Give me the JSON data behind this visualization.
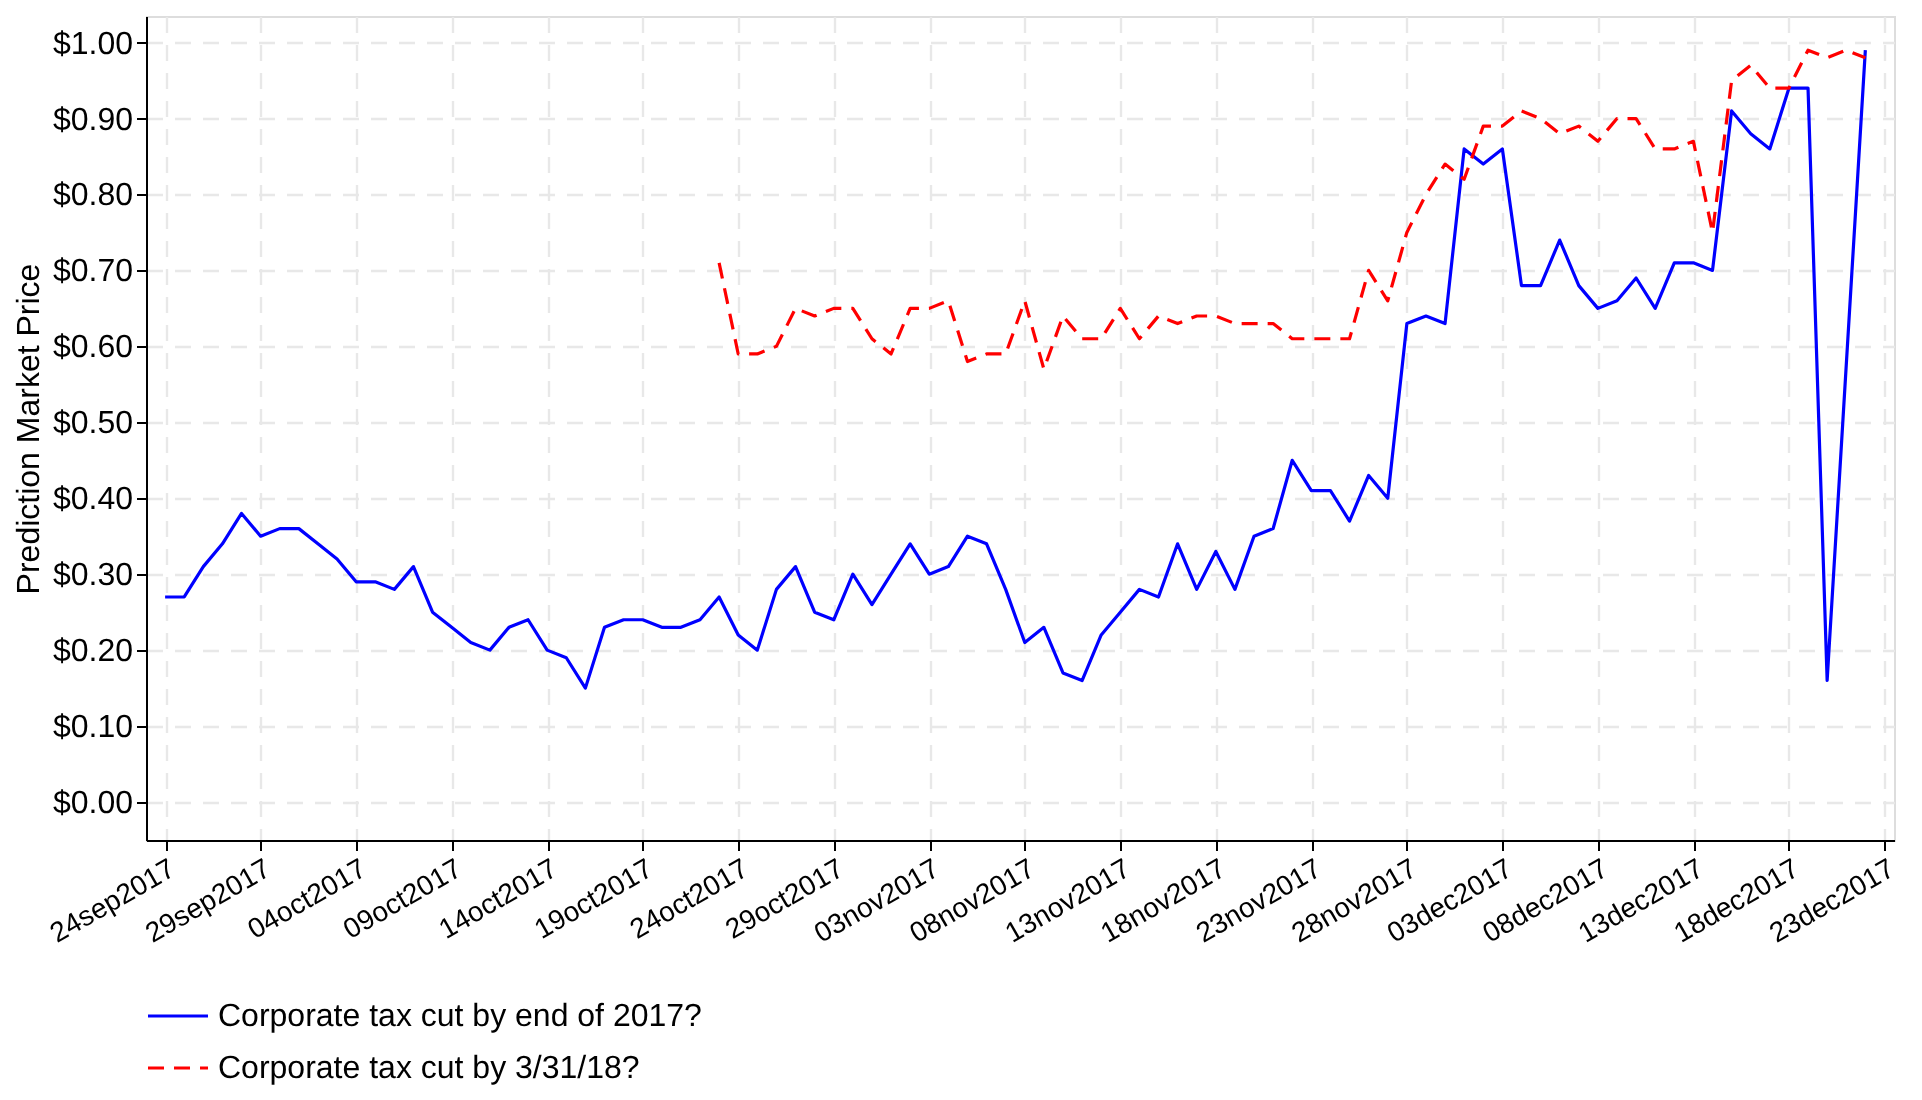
{
  "chart_data": {
    "type": "line",
    "ylabel": "Prediction Market Price",
    "xlim": [
      "2017-09-23",
      "2017-12-23T12:00"
    ],
    "xticks": [
      {
        "value": "2017-09-24",
        "label": "24sep2017"
      },
      {
        "value": "2017-09-29",
        "label": "29sep2017"
      },
      {
        "value": "2017-10-04",
        "label": "04oct2017"
      },
      {
        "value": "2017-10-09",
        "label": "09oct2017"
      },
      {
        "value": "2017-10-14",
        "label": "14oct2017"
      },
      {
        "value": "2017-10-19",
        "label": "19oct2017"
      },
      {
        "value": "2017-10-24",
        "label": "24oct2017"
      },
      {
        "value": "2017-10-29",
        "label": "29oct2017"
      },
      {
        "value": "2017-11-03",
        "label": "03nov2017"
      },
      {
        "value": "2017-11-08",
        "label": "08nov2017"
      },
      {
        "value": "2017-11-13",
        "label": "13nov2017"
      },
      {
        "value": "2017-11-18",
        "label": "18nov2017"
      },
      {
        "value": "2017-11-23",
        "label": "23nov2017"
      },
      {
        "value": "2017-11-28",
        "label": "28nov2017"
      },
      {
        "value": "2017-12-03",
        "label": "03dec2017"
      },
      {
        "value": "2017-12-08",
        "label": "08dec2017"
      },
      {
        "value": "2017-12-13",
        "label": "13dec2017"
      },
      {
        "value": "2017-12-18",
        "label": "18dec2017"
      },
      {
        "value": "2017-12-23",
        "label": "23dec2017"
      }
    ],
    "ylim": [
      -0.05,
      1.035
    ],
    "yticks": [
      {
        "value": 0,
        "label": "$0.00"
      },
      {
        "value": 0.1,
        "label": "$0.10"
      },
      {
        "value": 0.2,
        "label": "$0.20"
      },
      {
        "value": 0.3,
        "label": "$0.30"
      },
      {
        "value": 0.4,
        "label": "$0.40"
      },
      {
        "value": 0.5,
        "label": "$0.50"
      },
      {
        "value": 0.6,
        "label": "$0.60"
      },
      {
        "value": 0.7,
        "label": "$0.70"
      },
      {
        "value": 0.8,
        "label": "$0.80"
      },
      {
        "value": 0.9,
        "label": "$0.90"
      },
      {
        "value": 1.0,
        "label": "$1.00"
      }
    ],
    "grid": true,
    "legend": "bottom",
    "series": [
      {
        "name": "Corporate tax cut by end of 2017?",
        "color": "#0000ff",
        "line_style": "solid",
        "x": [
          "2017-09-24",
          "2017-09-25",
          "2017-09-26",
          "2017-09-27",
          "2017-09-28",
          "2017-09-29",
          "2017-09-30",
          "2017-10-01",
          "2017-10-02",
          "2017-10-03",
          "2017-10-04",
          "2017-10-05",
          "2017-10-06",
          "2017-10-07",
          "2017-10-08",
          "2017-10-09",
          "2017-10-10",
          "2017-10-11",
          "2017-10-12",
          "2017-10-13",
          "2017-10-14",
          "2017-10-15",
          "2017-10-16",
          "2017-10-17",
          "2017-10-18",
          "2017-10-19",
          "2017-10-20",
          "2017-10-21",
          "2017-10-22",
          "2017-10-23",
          "2017-10-24",
          "2017-10-25",
          "2017-10-26",
          "2017-10-27",
          "2017-10-28",
          "2017-10-29",
          "2017-10-30",
          "2017-10-31",
          "2017-11-01",
          "2017-11-02",
          "2017-11-03",
          "2017-11-04",
          "2017-11-05",
          "2017-11-06",
          "2017-11-07",
          "2017-11-08",
          "2017-11-09",
          "2017-11-10",
          "2017-11-11",
          "2017-11-12",
          "2017-11-13",
          "2017-11-14",
          "2017-11-15",
          "2017-11-16",
          "2017-11-17",
          "2017-11-18",
          "2017-11-19",
          "2017-11-20",
          "2017-11-21",
          "2017-11-22",
          "2017-11-23",
          "2017-11-24",
          "2017-11-25",
          "2017-11-26",
          "2017-11-27",
          "2017-11-28",
          "2017-11-29",
          "2017-11-30",
          "2017-12-01",
          "2017-12-02",
          "2017-12-03",
          "2017-12-04",
          "2017-12-05",
          "2017-12-06",
          "2017-12-07",
          "2017-12-08",
          "2017-12-09",
          "2017-12-10",
          "2017-12-11",
          "2017-12-12",
          "2017-12-13",
          "2017-12-14",
          "2017-12-15",
          "2017-12-16",
          "2017-12-17",
          "2017-12-18",
          "2017-12-19",
          "2017-12-20",
          "2017-12-22"
        ],
        "values": [
          0.27,
          0.27,
          0.31,
          0.34,
          0.38,
          0.35,
          0.36,
          0.36,
          0.34,
          0.32,
          0.29,
          0.29,
          0.28,
          0.31,
          0.25,
          0.23,
          0.21,
          0.2,
          0.23,
          0.24,
          0.2,
          0.19,
          0.15,
          0.23,
          0.24,
          0.24,
          0.23,
          0.23,
          0.24,
          0.27,
          0.22,
          0.2,
          0.28,
          0.31,
          0.25,
          0.24,
          0.3,
          0.26,
          0.3,
          0.34,
          0.3,
          0.31,
          0.35,
          0.34,
          0.28,
          0.21,
          0.23,
          0.17,
          0.16,
          0.22,
          0.25,
          0.28,
          0.27,
          0.34,
          0.28,
          0.33,
          0.28,
          0.35,
          0.36,
          0.45,
          0.41,
          0.41,
          0.37,
          0.43,
          0.4,
          0.63,
          0.64,
          0.63,
          0.86,
          0.84,
          0.86,
          0.68,
          0.68,
          0.74,
          0.68,
          0.65,
          0.66,
          0.69,
          0.65,
          0.71,
          0.71,
          0.7,
          0.91,
          0.88,
          0.86,
          0.94,
          0.94,
          0.16,
          0.99
        ]
      },
      {
        "name": "Corporate tax cut by 3/31/18?",
        "color": "#ff0000",
        "line_style": "dashed",
        "x": [
          "2017-10-23",
          "2017-10-24",
          "2017-10-25",
          "2017-10-26",
          "2017-10-27",
          "2017-10-28",
          "2017-10-29",
          "2017-10-30",
          "2017-10-31",
          "2017-11-01",
          "2017-11-02",
          "2017-11-03",
          "2017-11-04",
          "2017-11-05",
          "2017-11-06",
          "2017-11-07",
          "2017-11-08",
          "2017-11-09",
          "2017-11-10",
          "2017-11-11",
          "2017-11-12",
          "2017-11-13",
          "2017-11-14",
          "2017-11-15",
          "2017-11-16",
          "2017-11-17",
          "2017-11-18",
          "2017-11-19",
          "2017-11-20",
          "2017-11-21",
          "2017-11-22",
          "2017-11-23",
          "2017-11-24",
          "2017-11-25",
          "2017-11-26",
          "2017-11-27",
          "2017-11-28",
          "2017-11-29",
          "2017-11-30",
          "2017-12-01",
          "2017-12-02",
          "2017-12-03",
          "2017-12-04",
          "2017-12-05",
          "2017-12-06",
          "2017-12-07",
          "2017-12-08",
          "2017-12-09",
          "2017-12-10",
          "2017-12-11",
          "2017-12-12",
          "2017-12-13",
          "2017-12-14",
          "2017-12-15",
          "2017-12-16",
          "2017-12-17",
          "2017-12-18",
          "2017-12-19",
          "2017-12-20",
          "2017-12-21",
          "2017-12-22"
        ],
        "values": [
          0.71,
          0.59,
          0.59,
          0.6,
          0.65,
          0.64,
          0.65,
          0.65,
          0.61,
          0.59,
          0.65,
          0.65,
          0.66,
          0.58,
          0.59,
          0.59,
          0.66,
          0.57,
          0.64,
          0.61,
          0.61,
          0.65,
          0.61,
          0.64,
          0.63,
          0.64,
          0.64,
          0.63,
          0.63,
          0.63,
          0.61,
          0.61,
          0.61,
          0.61,
          0.7,
          0.66,
          0.75,
          0.8,
          0.84,
          0.82,
          0.89,
          0.89,
          0.91,
          0.9,
          0.88,
          0.89,
          0.87,
          0.9,
          0.9,
          0.86,
          0.86,
          0.87,
          0.75,
          0.95,
          0.97,
          0.94,
          0.94,
          0.99,
          0.98,
          0.99,
          0.98
        ]
      }
    ]
  }
}
